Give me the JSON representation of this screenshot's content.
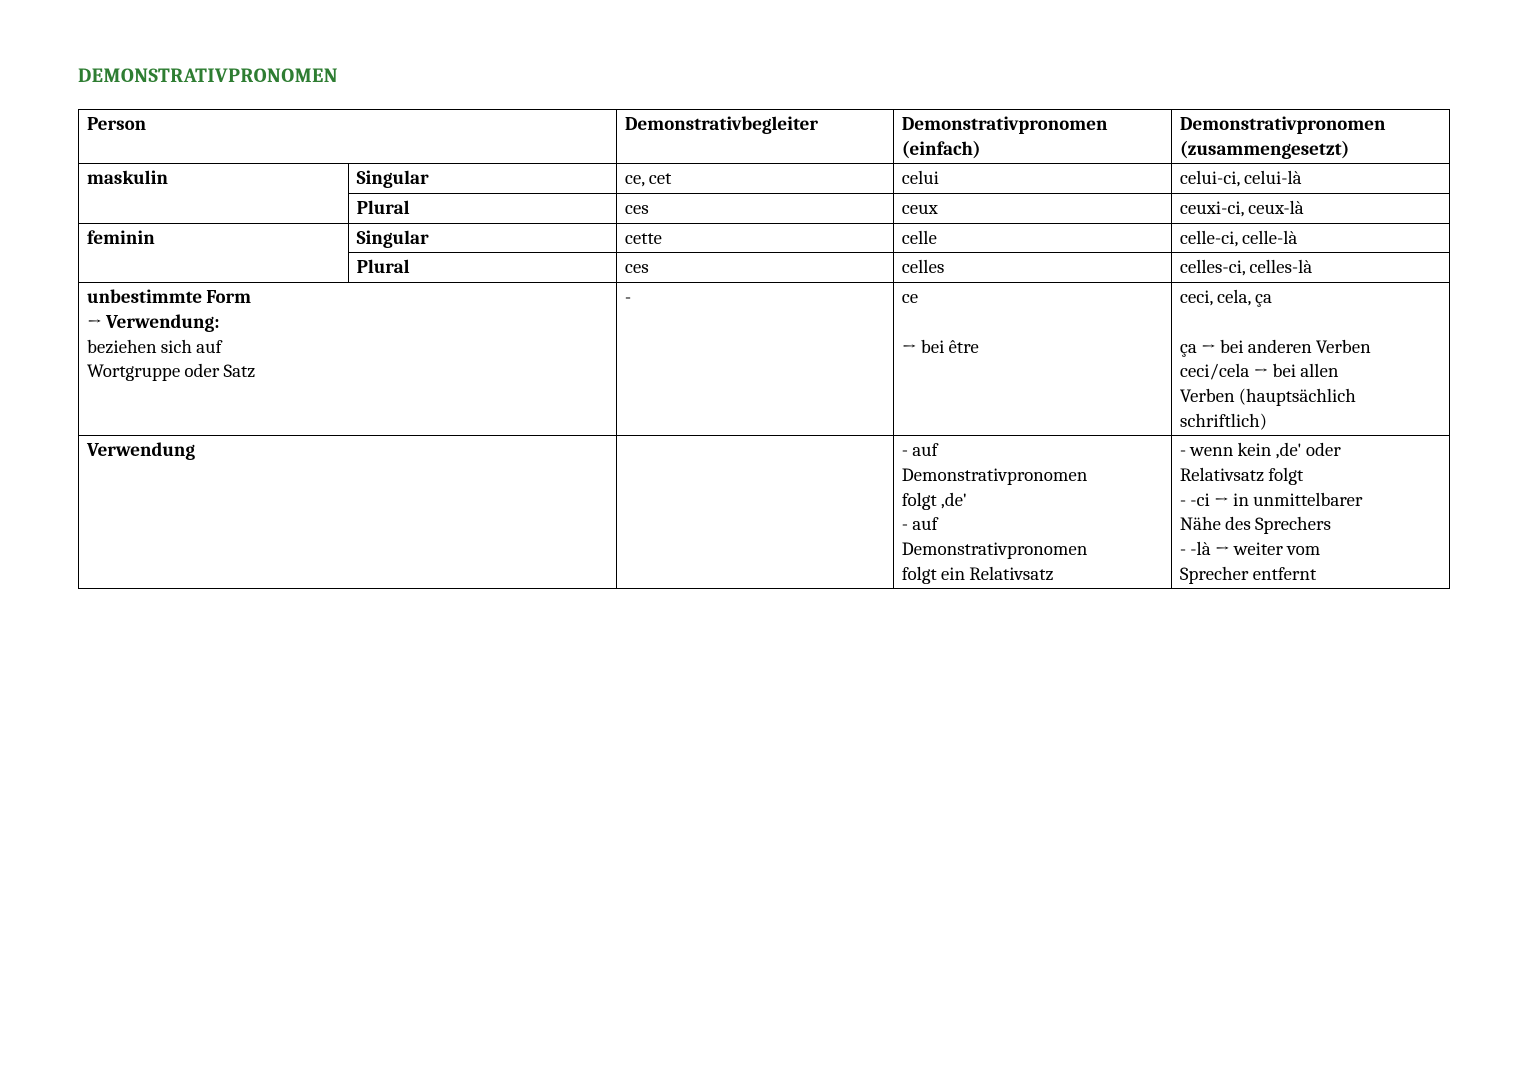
{
  "title": "DEMONSTRATIVPRONOMEN",
  "colors": {
    "title": "#2e7d32",
    "text": "#000000",
    "border": "#000000",
    "background": "#ffffff"
  },
  "table": {
    "columns": {
      "person": "Person",
      "begleiter": "Demonstrativbegleiter",
      "einfach_l1": "Demonstrativpronomen",
      "einfach_l2": "(einfach)",
      "zusammen_l1": "Demonstrativpronomen",
      "zusammen_l2": "(zusammengesetzt)"
    },
    "rows": {
      "mask_sg": {
        "gender": "maskulin",
        "num": "Singular",
        "begl": "ce, cet",
        "einf": "celui",
        "zus": "celui-ci, celui-là"
      },
      "mask_pl": {
        "gender": "",
        "num": "Plural",
        "begl": "ces",
        "einf": "ceux",
        "zus": "ceuxi-ci, ceux-là"
      },
      "fem_sg": {
        "gender": "feminin",
        "num": "Singular",
        "begl": "cette",
        "einf": "celle",
        "zus": "celle-ci, celle-là"
      },
      "fem_pl": {
        "gender": "",
        "num": "Plural",
        "begl": "ces",
        "einf": "celles",
        "zus": "celles-ci, celles-là"
      },
      "unbest": {
        "label_l1": "unbestimmte Form",
        "label_l2": "→ Verwendung:",
        "label_l3": "beziehen sich auf",
        "label_l4": "Wortgruppe oder Satz",
        "begl": "-",
        "einf_l1": "ce",
        "einf_l2": "",
        "einf_l3": "→ bei être",
        "zus_l1": "ceci, cela, ça",
        "zus_l2": "",
        "zus_l3": "ça → bei anderen Verben",
        "zus_l4": "ceci/cela → bei allen",
        "zus_l5": "Verben (hauptsächlich",
        "zus_l6": "schriftlich)"
      },
      "verw": {
        "label": "Verwendung",
        "einf_l1": "- auf",
        "einf_l2": "Demonstrativpronomen",
        "einf_l3": "folgt ‚de'",
        "einf_l4": "- auf",
        "einf_l5": "Demonstrativpronomen",
        "einf_l6": "folgt ein Relativsatz",
        "zus_l1": "- wenn kein ‚de' oder",
        "zus_l2": "Relativsatz folgt",
        "zus_l3": "- -ci → in unmittelbarer",
        "zus_l4": "Nähe des Sprechers",
        "zus_l5": "- -là → weiter vom",
        "zus_l6": "Sprecher entfernt"
      }
    }
  }
}
